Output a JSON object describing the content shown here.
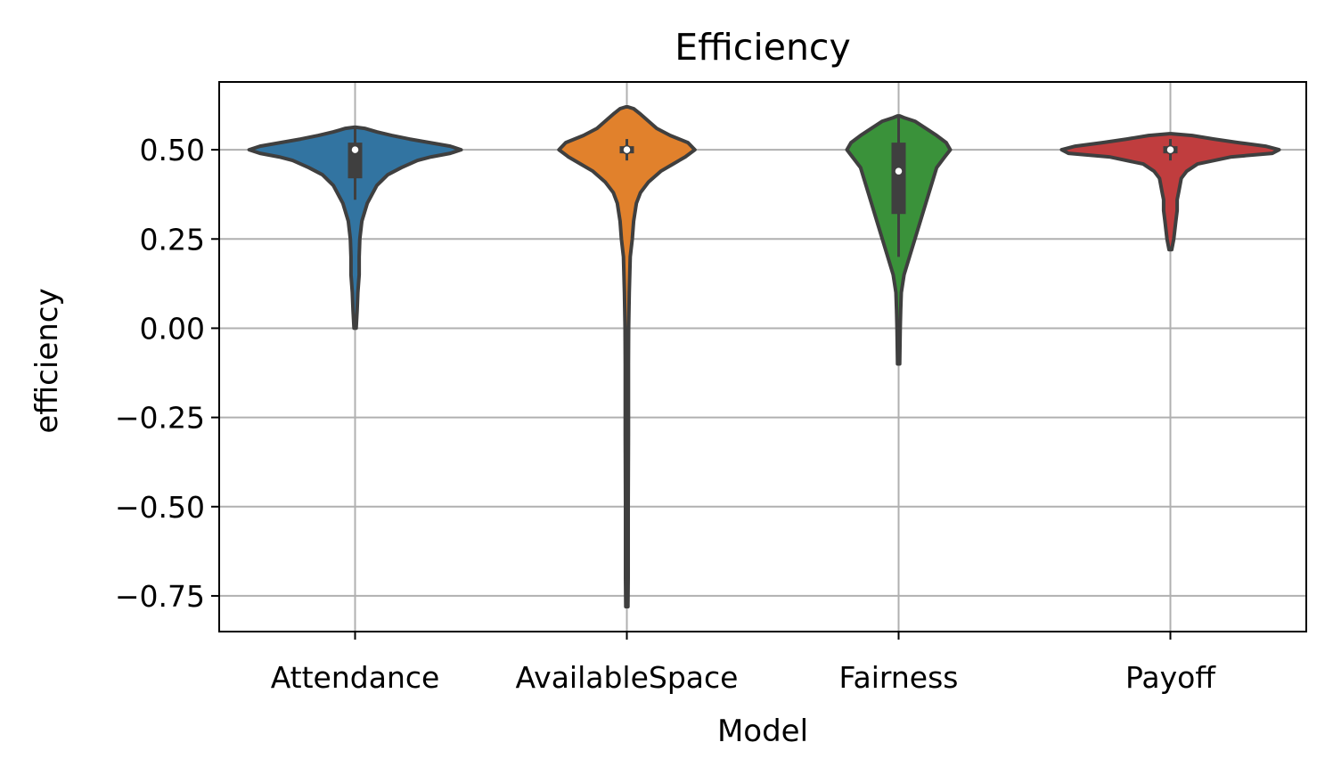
{
  "chart_data": {
    "type": "violin",
    "title": "Efficiency",
    "xlabel": "Model",
    "ylabel": "efficiency",
    "ylim": [
      -0.85,
      0.69
    ],
    "yticks": [
      {
        "value": 0.5,
        "label": "0.50"
      },
      {
        "value": 0.25,
        "label": "0.25"
      },
      {
        "value": 0.0,
        "label": "0.00"
      },
      {
        "value": -0.25,
        "label": "−0.25"
      },
      {
        "value": -0.5,
        "label": "−0.50"
      },
      {
        "value": -0.75,
        "label": "−0.75"
      }
    ],
    "grid": true,
    "categories": [
      "Attendance",
      "AvailableSpace",
      "Fairness",
      "Payoff"
    ],
    "series": [
      {
        "category": "Attendance",
        "color": "#3274a1",
        "min": 0.0,
        "q1": 0.42,
        "median": 0.5,
        "q3": 0.52,
        "max": 0.56,
        "whisker_low": 0.36,
        "whisker_high": 0.56,
        "density": [
          [
            0.0,
            0.005
          ],
          [
            0.05,
            0.015
          ],
          [
            0.1,
            0.02
          ],
          [
            0.15,
            0.03
          ],
          [
            0.2,
            0.03
          ],
          [
            0.25,
            0.035
          ],
          [
            0.3,
            0.05
          ],
          [
            0.35,
            0.09
          ],
          [
            0.4,
            0.16
          ],
          [
            0.43,
            0.24
          ],
          [
            0.45,
            0.34
          ],
          [
            0.47,
            0.46
          ],
          [
            0.48,
            0.56
          ],
          [
            0.49,
            0.7
          ],
          [
            0.5,
            0.78
          ],
          [
            0.51,
            0.7
          ],
          [
            0.52,
            0.55
          ],
          [
            0.53,
            0.4
          ],
          [
            0.54,
            0.27
          ],
          [
            0.55,
            0.16
          ],
          [
            0.56,
            0.07
          ],
          [
            0.563,
            0.0
          ]
        ]
      },
      {
        "category": "AvailableSpace",
        "color": "#e1812c",
        "min": -0.78,
        "q1": 0.49,
        "median": 0.5,
        "q3": 0.51,
        "max": 0.62,
        "whisker_low": 0.47,
        "whisker_high": 0.53,
        "density": [
          [
            -0.78,
            0.005
          ],
          [
            -0.7,
            0.01
          ],
          [
            -0.5,
            0.01
          ],
          [
            -0.3,
            0.012
          ],
          [
            -0.1,
            0.012
          ],
          [
            0.0,
            0.013
          ],
          [
            0.1,
            0.018
          ],
          [
            0.2,
            0.025
          ],
          [
            0.25,
            0.04
          ],
          [
            0.3,
            0.05
          ],
          [
            0.35,
            0.07
          ],
          [
            0.38,
            0.1
          ],
          [
            0.41,
            0.16
          ],
          [
            0.44,
            0.25
          ],
          [
            0.46,
            0.34
          ],
          [
            0.48,
            0.43
          ],
          [
            0.5,
            0.5
          ],
          [
            0.52,
            0.45
          ],
          [
            0.54,
            0.32
          ],
          [
            0.56,
            0.22
          ],
          [
            0.58,
            0.16
          ],
          [
            0.6,
            0.1
          ],
          [
            0.615,
            0.05
          ],
          [
            0.62,
            0.0
          ]
        ]
      },
      {
        "category": "Fairness",
        "color": "#3a923a",
        "min": -0.1,
        "q1": 0.32,
        "median": 0.44,
        "q3": 0.52,
        "max": 0.59,
        "whisker_low": 0.2,
        "whisker_high": 0.59,
        "density": [
          [
            -0.1,
            0.005
          ],
          [
            -0.05,
            0.01
          ],
          [
            0.0,
            0.012
          ],
          [
            0.05,
            0.015
          ],
          [
            0.1,
            0.02
          ],
          [
            0.15,
            0.04
          ],
          [
            0.2,
            0.08
          ],
          [
            0.25,
            0.12
          ],
          [
            0.3,
            0.16
          ],
          [
            0.35,
            0.2
          ],
          [
            0.4,
            0.24
          ],
          [
            0.45,
            0.28
          ],
          [
            0.48,
            0.34
          ],
          [
            0.5,
            0.38
          ],
          [
            0.52,
            0.35
          ],
          [
            0.54,
            0.28
          ],
          [
            0.56,
            0.2
          ],
          [
            0.58,
            0.12
          ],
          [
            0.59,
            0.04
          ],
          [
            0.595,
            0.0
          ]
        ]
      },
      {
        "category": "Payoff",
        "color": "#c03d3e",
        "min": 0.22,
        "q1": 0.49,
        "median": 0.5,
        "q3": 0.51,
        "max": 0.54,
        "whisker_low": 0.47,
        "whisker_high": 0.53,
        "density": [
          [
            0.22,
            0.01
          ],
          [
            0.25,
            0.025
          ],
          [
            0.3,
            0.04
          ],
          [
            0.33,
            0.05
          ],
          [
            0.36,
            0.05
          ],
          [
            0.38,
            0.06
          ],
          [
            0.4,
            0.07
          ],
          [
            0.42,
            0.08
          ],
          [
            0.44,
            0.12
          ],
          [
            0.46,
            0.2
          ],
          [
            0.48,
            0.45
          ],
          [
            0.49,
            0.75
          ],
          [
            0.5,
            0.8
          ],
          [
            0.51,
            0.7
          ],
          [
            0.52,
            0.5
          ],
          [
            0.53,
            0.32
          ],
          [
            0.54,
            0.16
          ],
          [
            0.545,
            0.0
          ]
        ]
      }
    ]
  }
}
